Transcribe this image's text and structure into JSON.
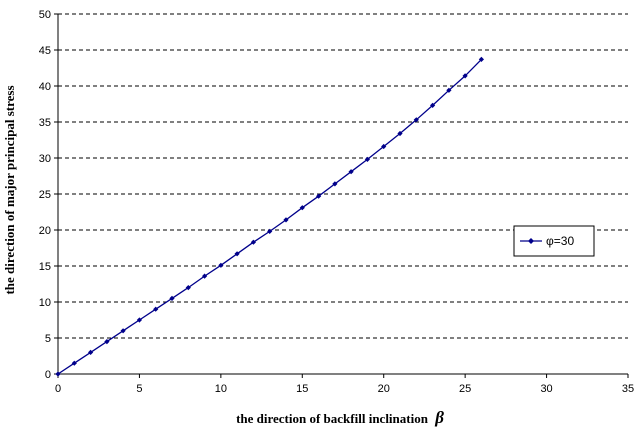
{
  "chart_data": {
    "type": "line",
    "title": "",
    "xlabel": "the direction of backfill inclination",
    "xlabel_symbol": "β",
    "ylabel": "the direction of major principal stress",
    "xlim": [
      0,
      35
    ],
    "ylim": [
      0,
      50
    ],
    "x_ticks": [
      "0",
      "5",
      "10",
      "15",
      "20",
      "25",
      "30",
      "35"
    ],
    "y_ticks": [
      "0",
      "5",
      "10",
      "15",
      "20",
      "25",
      "30",
      "35",
      "40",
      "45",
      "50"
    ],
    "grid": "horizontal dashed",
    "legend_position": "right",
    "series": [
      {
        "name": "φ=30",
        "color": "#00008b",
        "marker": "diamond",
        "x": [
          0,
          1,
          2,
          3,
          4,
          5,
          6,
          7,
          8,
          9,
          10,
          11,
          12,
          13,
          14,
          15,
          16,
          17,
          18,
          19,
          20,
          21,
          22,
          23,
          24,
          25,
          26
        ],
        "y": [
          0,
          1.5,
          3.0,
          4.5,
          6.0,
          7.5,
          9.0,
          10.5,
          12.0,
          13.6,
          15.1,
          16.7,
          18.3,
          19.8,
          21.4,
          23.1,
          24.7,
          26.4,
          28.1,
          29.8,
          31.6,
          33.4,
          35.3,
          37.3,
          39.4,
          41.4,
          43.7
        ]
      }
    ]
  }
}
